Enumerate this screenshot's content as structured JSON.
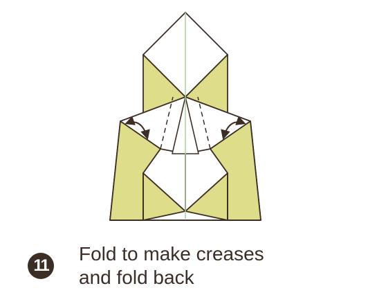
{
  "step": {
    "number": "11",
    "caption_line1": "Fold to make creases",
    "caption_line2": "and fold back"
  },
  "colors": {
    "paper_colored": "#dedd8a",
    "paper_white": "#ffffff",
    "outline": "#3d2e25",
    "center_line": "#a7d69a",
    "ink": "#3d2e25"
  }
}
